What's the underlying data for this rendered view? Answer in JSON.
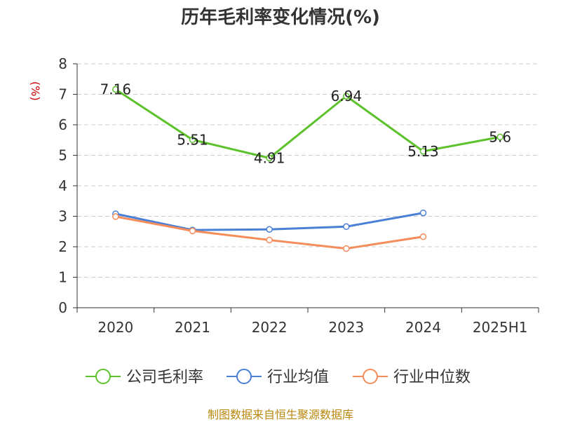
{
  "title": "历年毛利率变化情况(%)",
  "source_text": "制图数据来自恒生聚源数据库",
  "colors": {
    "unit": "#cc0000",
    "source": "#b8860b",
    "grid": "#cccccc",
    "axis": "#333333"
  },
  "chart_data": {
    "type": "line",
    "title": "历年毛利率变化情况(%)",
    "ylabel": "(%)",
    "xlabel": "",
    "ylim": [
      0,
      8
    ],
    "y_ticks": [
      0,
      1,
      2,
      3,
      4,
      5,
      6,
      7,
      8
    ],
    "categories": [
      "2020",
      "2021",
      "2022",
      "2023",
      "2024",
      "2025H1"
    ],
    "grid": true,
    "legend_position": "bottom",
    "series": [
      {
        "name": "公司毛利率",
        "color": "#5cc12b",
        "values": [
          7.16,
          5.51,
          4.91,
          6.94,
          5.13,
          5.6
        ],
        "labels": [
          "7.16",
          "5.51",
          "4.91",
          "6.94",
          "5.13",
          "5.6"
        ],
        "show_labels": true
      },
      {
        "name": "行业均值",
        "color": "#4a7fd6",
        "values": [
          3.08,
          2.55,
          2.57,
          2.66,
          3.11,
          null
        ],
        "show_labels": false
      },
      {
        "name": "行业中位数",
        "color": "#f58c5a",
        "values": [
          2.99,
          2.52,
          2.22,
          1.94,
          2.33,
          null
        ],
        "show_labels": false
      }
    ]
  }
}
